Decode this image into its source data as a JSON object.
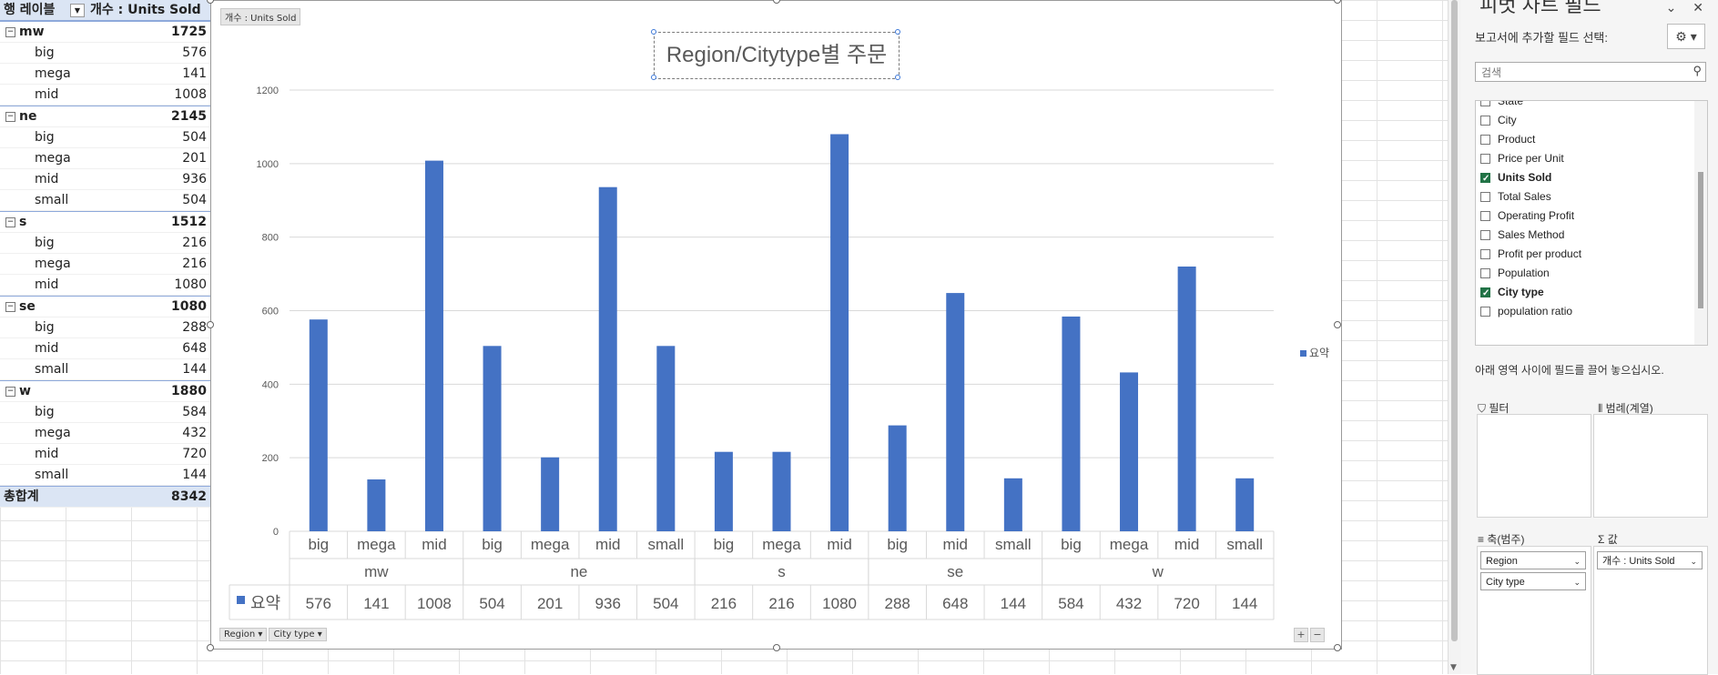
{
  "pivot_table": {
    "header": {
      "row_label": "행 레이블",
      "value_label": "개수 : Units Sold"
    },
    "groups": [
      {
        "name": "mw",
        "total": "1725",
        "items": [
          {
            "name": "big",
            "value": "576"
          },
          {
            "name": "mega",
            "value": "141"
          },
          {
            "name": "mid",
            "value": "1008"
          }
        ]
      },
      {
        "name": "ne",
        "total": "2145",
        "items": [
          {
            "name": "big",
            "value": "504"
          },
          {
            "name": "mega",
            "value": "201"
          },
          {
            "name": "mid",
            "value": "936"
          },
          {
            "name": "small",
            "value": "504"
          }
        ]
      },
      {
        "name": "s",
        "total": "1512",
        "items": [
          {
            "name": "big",
            "value": "216"
          },
          {
            "name": "mega",
            "value": "216"
          },
          {
            "name": "mid",
            "value": "1080"
          }
        ]
      },
      {
        "name": "se",
        "total": "1080",
        "items": [
          {
            "name": "big",
            "value": "288"
          },
          {
            "name": "mid",
            "value": "648"
          },
          {
            "name": "small",
            "value": "144"
          }
        ]
      },
      {
        "name": "w",
        "total": "1880",
        "items": [
          {
            "name": "big",
            "value": "584"
          },
          {
            "name": "mega",
            "value": "432"
          },
          {
            "name": "mid",
            "value": "720"
          },
          {
            "name": "small",
            "value": "144"
          }
        ]
      }
    ],
    "grand_total_label": "총합계",
    "grand_total": "8342"
  },
  "chart": {
    "field_chip": "개수 : Units Sold",
    "title": "Region/Citytype별 주문",
    "legend": "요약",
    "axis_chips": [
      "Region",
      "City type"
    ],
    "zoom_plus": "+",
    "zoom_minus": "−"
  },
  "chart_data": {
    "type": "bar",
    "title": "Region/Citytype별 주문",
    "groups": [
      "mw",
      "ne",
      "s",
      "se",
      "w"
    ],
    "categories": [
      "big",
      "mega",
      "mid",
      "big",
      "mega",
      "mid",
      "small",
      "big",
      "mega",
      "mid",
      "big",
      "mid",
      "small",
      "big",
      "mega",
      "mid",
      "small"
    ],
    "category_groups": [
      "mw",
      "mw",
      "mw",
      "ne",
      "ne",
      "ne",
      "ne",
      "s",
      "s",
      "s",
      "se",
      "se",
      "se",
      "w",
      "w",
      "w",
      "w"
    ],
    "series": [
      {
        "name": "요약",
        "values": [
          576,
          141,
          1008,
          504,
          201,
          936,
          504,
          216,
          216,
          1080,
          288,
          648,
          144,
          584,
          432,
          720,
          144
        ]
      }
    ],
    "yticks": [
      0,
      200,
      400,
      600,
      800,
      1000,
      1200
    ],
    "ylim": [
      0,
      1200
    ],
    "grid": true,
    "legend_position": "right",
    "data_table": true,
    "colors": {
      "bar": "#4472c4",
      "grid": "#d9d9d9",
      "text": "#595959"
    }
  },
  "panel": {
    "title": "피벗 차트 필드",
    "tool_icons": [
      "chevron-down-icon",
      "close-icon"
    ],
    "add_fields_label": "보고서에 추가할 필드 선택:",
    "search_placeholder": "검색",
    "fields": [
      {
        "name": "State",
        "checked": false
      },
      {
        "name": "City",
        "checked": false
      },
      {
        "name": "Product",
        "checked": false
      },
      {
        "name": "Price per Unit",
        "checked": false
      },
      {
        "name": "Units Sold",
        "checked": true
      },
      {
        "name": "Total Sales",
        "checked": false
      },
      {
        "name": "Operating Profit",
        "checked": false
      },
      {
        "name": "Sales Method",
        "checked": false
      },
      {
        "name": "Profit per product",
        "checked": false
      },
      {
        "name": "Population",
        "checked": false
      },
      {
        "name": "City type",
        "checked": true
      },
      {
        "name": "population ratio",
        "checked": false
      }
    ],
    "drag_label": "아래 영역 사이에 필드를 끌어 놓으십시오.",
    "zones": {
      "filter": "필터",
      "legend": "범례(계열)",
      "axis": "축(범주)",
      "values": "값"
    },
    "axis_fields": [
      "Region",
      "City type"
    ],
    "value_fields": [
      "개수 : Units Sold"
    ]
  }
}
